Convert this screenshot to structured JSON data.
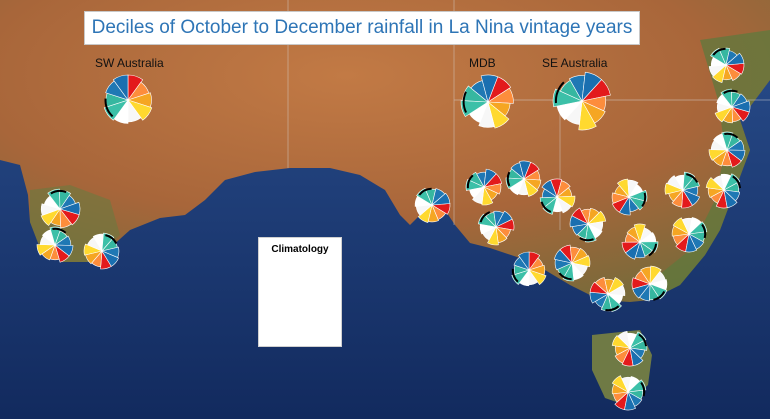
{
  "title": "Deciles of October to December rainfall in La Nina vintage years",
  "region_labels": {
    "sw_australia": "SW Australia",
    "mdb": "MDB",
    "se_australia": "SE Australia"
  },
  "climatology_label": "Climatology",
  "colors": {
    "ocean": "#1f3a78",
    "land": "#b06a3c",
    "decile_1": "#e31a1c",
    "decile_2": "#fd8d3c",
    "decile_3": "#f5a623",
    "decile_4": "#ffd92f",
    "decile_5": "#f4f4f4",
    "decile_6": "#ffffff",
    "decile_7": "#3cc0a8",
    "decile_8": "#3cc0a8",
    "decile_9": "#1f78b4",
    "decile_10": "#1f78b4",
    "edge": "#000000"
  },
  "pie_segment_colors": [
    "#e31a1c",
    "#fd8d3c",
    "#f5a623",
    "#ffd92f",
    "#f7f7f7",
    "#ffffff",
    "#3cc0a8",
    "#36b7a0",
    "#1f78b4",
    "#1a6fb0"
  ]
}
